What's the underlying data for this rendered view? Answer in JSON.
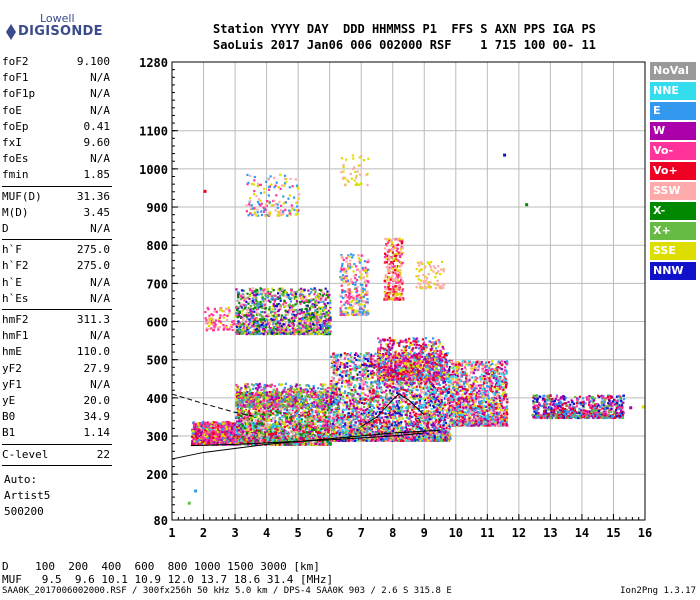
{
  "logo": {
    "line1": "Lowell",
    "line2": "DIGISONDE"
  },
  "header": {
    "line1": "Station YYYY DAY  DDD HHMMSS P1  FFS S AXN PPS IGA PS",
    "line2": "SaoLuis 2017 Jan06 006 002000 RSF    1 715 100 00- 11"
  },
  "params_a": [
    {
      "name": "foF2",
      "value": "9.100"
    },
    {
      "name": "foF1",
      "value": "N/A"
    },
    {
      "name": "foF1p",
      "value": "N/A"
    },
    {
      "name": "foE",
      "value": "N/A"
    },
    {
      "name": "foEp",
      "value": "0.41"
    },
    {
      "name": "fxI",
      "value": "9.60"
    },
    {
      "name": "foEs",
      "value": "N/A"
    },
    {
      "name": "fmin",
      "value": "1.85"
    }
  ],
  "params_b": [
    {
      "name": "MUF(D)",
      "value": "31.36"
    },
    {
      "name": "M(D)",
      "value": "3.45"
    },
    {
      "name": "D",
      "value": "N/A"
    }
  ],
  "params_c": [
    {
      "name": "h`F",
      "value": "275.0"
    },
    {
      "name": "h`F2",
      "value": "275.0"
    },
    {
      "name": "h`E",
      "value": "N/A"
    },
    {
      "name": "h`Es",
      "value": "N/A"
    }
  ],
  "params_d": [
    {
      "name": "hmF2",
      "value": "311.3"
    },
    {
      "name": "hmF1",
      "value": "N/A"
    },
    {
      "name": "hmE",
      "value": "110.0"
    },
    {
      "name": "yF2",
      "value": "27.9"
    },
    {
      "name": "yF1",
      "value": "N/A"
    },
    {
      "name": "yE",
      "value": "20.0"
    },
    {
      "name": "B0",
      "value": "34.9"
    },
    {
      "name": "B1",
      "value": "1.14"
    }
  ],
  "params_e": [
    {
      "name": "C-level",
      "value": "22"
    }
  ],
  "autoscaling": {
    "line1": "Auto:",
    "line2": "Artist5",
    "line3": "500200"
  },
  "legend": [
    {
      "label": "NoVal",
      "color": "#9a9a9a"
    },
    {
      "label": "NNE",
      "color": "#33ddee"
    },
    {
      "label": "E",
      "color": "#3399ee"
    },
    {
      "label": "W",
      "color": "#aa00aa"
    },
    {
      "label": "Vo-",
      "color": "#ff3399"
    },
    {
      "label": "Vo+",
      "color": "#ee0022"
    },
    {
      "label": "SSW",
      "color": "#ffaaaa"
    },
    {
      "label": "X-",
      "color": "#008800"
    },
    {
      "label": "X+",
      "color": "#66bb44"
    },
    {
      "label": "SSE",
      "color": "#dddd00"
    },
    {
      "label": "NNW",
      "color": "#1111cc"
    }
  ],
  "footer": {
    "d_line": "D    100  200  400  600  800 1000 1500 3000 [km]",
    "muf_line": "MUF   9.5  9.6 10.1 10.9 12.0 13.7 18.6 31.4 [MHz]",
    "file_line": "SAA0K_2017006002000.RSF / 300fx256h 50 kHz 5.0 km / DPS-4 SAA0K 903 / 2.6 S 315.8 E",
    "version": "Ion2Png 1.3.17"
  },
  "chart_data": {
    "type": "scatter",
    "title": "",
    "xlabel": "",
    "ylabel": "",
    "xlim": [
      1,
      16
    ],
    "ylim": [
      80,
      1280
    ],
    "x_ticks": [
      "1",
      "2",
      "3",
      "4",
      "5",
      "6",
      "7",
      "8",
      "9",
      "10",
      "11",
      "12",
      "13",
      "14",
      "15",
      "16"
    ],
    "y_ticks": [
      "80",
      "200",
      "300",
      "400",
      "500",
      "600",
      "700",
      "800",
      "900",
      "1000",
      "1100",
      "1280"
    ],
    "grid": true,
    "legend_position": "right",
    "scatter_clusters": [
      {
        "x": [
          1.6,
          3.0
        ],
        "y": [
          280,
          340
        ],
        "density": 900,
        "colors": [
          "#ff3399",
          "#ee0022",
          "#aa00aa",
          "#ff3399",
          "#3399ee",
          "#dddd00"
        ]
      },
      {
        "x": [
          3.0,
          6.0
        ],
        "y": [
          280,
          420
        ],
        "density": 2200,
        "colors": [
          "#ff3399",
          "#ee0022",
          "#aa00aa",
          "#3399ee",
          "#33ddee",
          "#ffaaaa",
          "#dddd00",
          "#66bb44",
          "#008800"
        ]
      },
      {
        "x": [
          3.0,
          6.0
        ],
        "y": [
          380,
          440
        ],
        "density": 500,
        "colors": [
          "#dddd00",
          "#66bb44",
          "#3399ee",
          "#aa00aa",
          "#ff3399"
        ]
      },
      {
        "x": [
          6.0,
          9.8
        ],
        "y": [
          290,
          520
        ],
        "density": 3200,
        "colors": [
          "#ff3399",
          "#ee0022",
          "#aa00aa",
          "#3399ee",
          "#33ddee",
          "#ffaaaa",
          "#dddd00",
          "#66bb44",
          "#1111cc"
        ]
      },
      {
        "x": [
          7.5,
          9.6
        ],
        "y": [
          450,
          560
        ],
        "density": 700,
        "colors": [
          "#ff3399",
          "#aa00aa",
          "#ee0022",
          "#3399ee",
          "#dddd00"
        ]
      },
      {
        "x": [
          9.8,
          11.6
        ],
        "y": [
          330,
          500
        ],
        "density": 1400,
        "colors": [
          "#ff3399",
          "#ee0022",
          "#aa00aa",
          "#3399ee",
          "#33ddee",
          "#ffaaaa",
          "#dddd00"
        ]
      },
      {
        "x": [
          12.4,
          15.3
        ],
        "y": [
          350,
          410
        ],
        "density": 700,
        "colors": [
          "#ff3399",
          "#ee0022",
          "#aa00aa",
          "#3399ee",
          "#66bb44",
          "#1111cc"
        ]
      },
      {
        "x": [
          3.0,
          6.0
        ],
        "y": [
          570,
          690
        ],
        "density": 1300,
        "colors": [
          "#ffaaaa",
          "#ff3399",
          "#dddd00",
          "#3399ee",
          "#aa00aa",
          "#66bb44",
          "#008800",
          "#1111cc"
        ]
      },
      {
        "x": [
          2.0,
          3.0
        ],
        "y": [
          580,
          640
        ],
        "density": 100,
        "colors": [
          "#dddd00",
          "#ff3399",
          "#ffaaaa"
        ]
      },
      {
        "x": [
          6.3,
          7.2
        ],
        "y": [
          620,
          780
        ],
        "density": 300,
        "colors": [
          "#ffaaaa",
          "#dddd00",
          "#ff3399",
          "#3399ee"
        ]
      },
      {
        "x": [
          7.7,
          8.3
        ],
        "y": [
          660,
          820
        ],
        "density": 300,
        "colors": [
          "#ffaaaa",
          "#ff3399",
          "#ee0022",
          "#dddd00"
        ]
      },
      {
        "x": [
          8.7,
          9.6
        ],
        "y": [
          690,
          760
        ],
        "density": 80,
        "colors": [
          "#dddd00",
          "#ffaaaa"
        ]
      },
      {
        "x": [
          3.3,
          5.0
        ],
        "y": [
          880,
          990
        ],
        "density": 160,
        "colors": [
          "#dddd00",
          "#ffaaaa",
          "#3399ee",
          "#ff3399"
        ]
      },
      {
        "x": [
          6.3,
          7.2
        ],
        "y": [
          960,
          1060
        ],
        "density": 40,
        "colors": [
          "#dddd00",
          "#ffaaaa"
        ]
      }
    ],
    "scatter_points": [
      {
        "x": 11.5,
        "y": 1040,
        "color": "#1111cc"
      },
      {
        "x": 12.2,
        "y": 910,
        "color": "#008800"
      },
      {
        "x": 2.0,
        "y": 945,
        "color": "#ee0022"
      },
      {
        "x": 1.7,
        "y": 160,
        "color": "#3399ee"
      },
      {
        "x": 1.5,
        "y": 128,
        "color": "#66bb44"
      },
      {
        "x": 15.5,
        "y": 378,
        "color": "#aa00aa"
      },
      {
        "x": 15.9,
        "y": 380,
        "color": "#dddd00"
      }
    ],
    "lines": [
      {
        "style": "solid",
        "x": [
          1,
          2,
          4,
          6,
          8,
          9.5
        ],
        "y": [
          240,
          257,
          278,
          293,
          308,
          315
        ]
      },
      {
        "style": "dashed",
        "x": [
          1,
          2,
          3,
          3.6
        ],
        "y": [
          410,
          385,
          362,
          352
        ]
      },
      {
        "style": "solid",
        "x": [
          7,
          7.5,
          8,
          8.2,
          8.5,
          9
        ],
        "y": [
          325,
          350,
          395,
          410,
          395,
          355
        ]
      },
      {
        "style": "solid",
        "x": [
          1.6,
          2,
          3,
          4,
          6,
          8,
          9
        ],
        "y": [
          275,
          276,
          278,
          282,
          290,
          300,
          308
        ]
      }
    ]
  }
}
